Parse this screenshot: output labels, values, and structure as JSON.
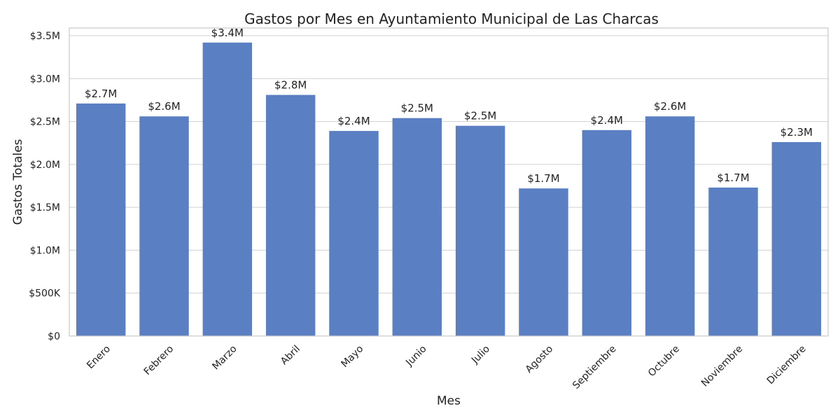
{
  "chart_data": {
    "type": "bar",
    "title": "Gastos por Mes en Ayuntamiento Municipal de Las Charcas",
    "xlabel": "Mes",
    "ylabel": "Gastos Totales",
    "categories": [
      "Enero",
      "Febrero",
      "Marzo",
      "Abril",
      "Mayo",
      "Junio",
      "Julio",
      "Agosto",
      "Septiembre",
      "Octubre",
      "Noviembre",
      "Diciembre"
    ],
    "values": [
      2710000,
      2560000,
      3420000,
      2810000,
      2390000,
      2540000,
      2450000,
      1720000,
      2400000,
      2560000,
      1730000,
      2260000
    ],
    "data_labels": [
      "$2.7M",
      "$2.6M",
      "$3.4M",
      "$2.8M",
      "$2.4M",
      "$2.5M",
      "$2.5M",
      "$1.7M",
      "$2.4M",
      "$2.6M",
      "$1.7M",
      "$2.3M"
    ],
    "y_ticks": [
      0,
      500000,
      1000000,
      1500000,
      2000000,
      2500000,
      3000000,
      3500000
    ],
    "y_tick_labels": [
      "$0",
      "$500K",
      "$1.0M",
      "$1.5M",
      "$2.0M",
      "$2.5M",
      "$3.0M",
      "$3.5M"
    ],
    "ylim": [
      0,
      3590000
    ],
    "grid": true,
    "colors": {
      "bar": "#5a7fc2"
    }
  }
}
